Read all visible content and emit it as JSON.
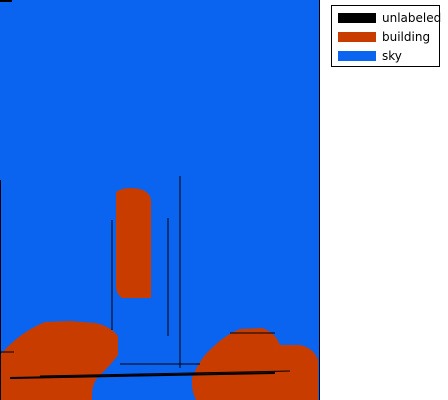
{
  "legend": {
    "items": [
      {
        "label": "unlabeled",
        "color": "#000000"
      },
      {
        "label": "building",
        "color": "#c83c00"
      },
      {
        "label": "sky",
        "color": "#0a64f0"
      }
    ]
  }
}
